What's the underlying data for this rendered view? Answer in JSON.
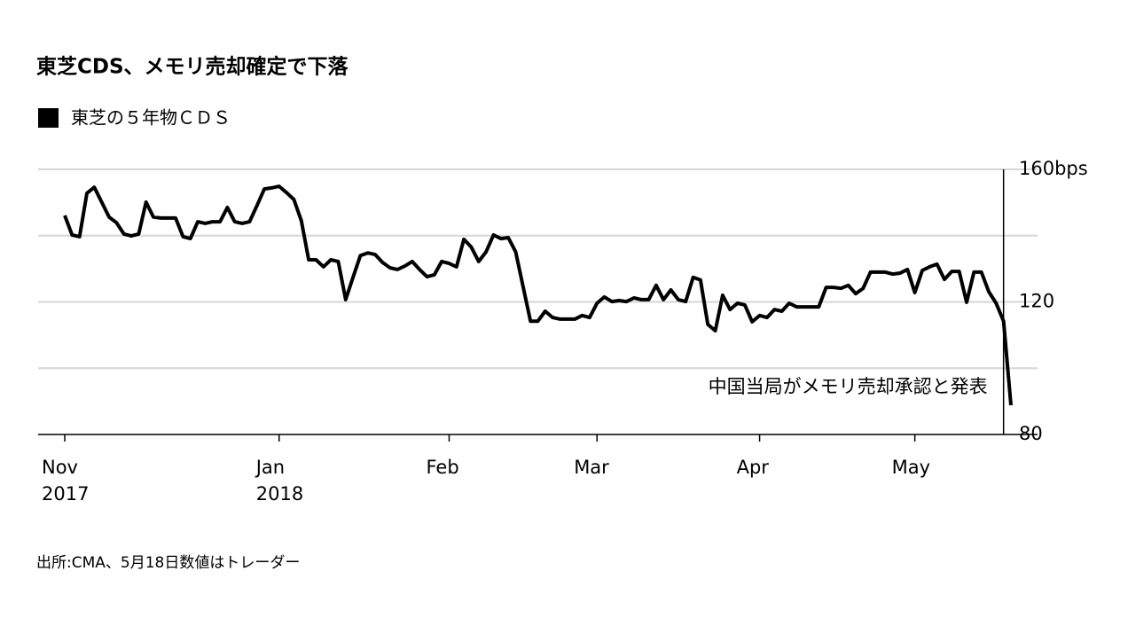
{
  "chart_data": {
    "type": "line",
    "title": "東芝CDS、メモリ売却確定で下落",
    "source": "出所:CMA、5月18日数値はトレーダー",
    "categories": [
      "Nov\n2017",
      null,
      null,
      null,
      null,
      null,
      null,
      null,
      null,
      null,
      null,
      null,
      null,
      null,
      null,
      null,
      null,
      null,
      null,
      null,
      null,
      null,
      null,
      null,
      null,
      null,
      null,
      null,
      null,
      "Jan\n2018",
      null,
      null,
      null,
      null,
      null,
      null,
      null,
      null,
      null,
      null,
      null,
      null,
      null,
      null,
      null,
      null,
      null,
      null,
      null,
      null,
      null,
      null,
      "Feb",
      null,
      null,
      null,
      null,
      null,
      null,
      null,
      null,
      null,
      null,
      null,
      null,
      null,
      null,
      null,
      null,
      null,
      null,
      null,
      "Mar",
      null,
      null,
      null,
      null,
      null,
      null,
      null,
      null,
      null,
      null,
      null,
      null,
      null,
      null,
      null,
      null,
      null,
      null,
      null,
      null,
      null,
      "Apr",
      null,
      null,
      null,
      null,
      null,
      null,
      null,
      null,
      null,
      null,
      null,
      null,
      null,
      null,
      null,
      null,
      null,
      null,
      null,
      null,
      "May",
      null,
      null,
      null,
      null,
      null,
      null,
      null,
      null,
      null,
      null,
      null,
      null,
      null
    ],
    "series": [
      {
        "name": "東芝の５年物ＣＤＳ",
        "color": "#000000",
        "values": [
          146.1,
          140.2,
          139.7,
          152.8,
          154.6,
          150.1,
          145.6,
          143.9,
          140.5,
          139.9,
          140.5,
          150.1,
          145.6,
          145.3,
          145.3,
          145.3,
          139.7,
          139.1,
          144.2,
          143.7,
          144.2,
          144.2,
          148.5,
          144.2,
          143.7,
          144.2,
          149.0,
          154.1,
          154.4,
          154.9,
          153.0,
          150.9,
          144.5,
          132.7,
          132.7,
          130.6,
          132.7,
          132.2,
          120.7,
          127.4,
          134.0,
          134.8,
          134.3,
          131.9,
          130.3,
          129.8,
          130.8,
          132.2,
          129.8,
          127.6,
          128.2,
          132.2,
          131.6,
          130.6,
          138.9,
          136.5,
          132.2,
          135.1,
          140.2,
          139.1,
          139.4,
          135.1,
          124.7,
          114.2,
          114.2,
          117.2,
          115.3,
          114.8,
          114.8,
          114.8,
          115.9,
          115.3,
          119.6,
          121.5,
          120.1,
          120.4,
          120.1,
          121.2,
          120.7,
          120.7,
          125.0,
          120.7,
          123.6,
          120.7,
          120.1,
          127.4,
          126.6,
          113.2,
          111.3,
          122.0,
          117.7,
          119.6,
          119.1,
          114.0,
          115.9,
          115.3,
          117.7,
          117.2,
          119.6,
          118.5,
          118.5,
          118.5,
          118.5,
          124.4,
          124.4,
          124.1,
          125.0,
          122.5,
          124.1,
          129.0,
          129.0,
          129.0,
          128.4,
          128.7,
          129.8,
          122.8,
          129.5,
          130.6,
          131.4,
          126.8,
          129.2,
          129.2,
          119.9,
          129.0,
          129.0,
          123.1,
          119.6,
          114.2,
          88.8
        ]
      }
    ],
    "ylim": [
      80,
      160
    ],
    "yticks": [
      {
        "value": 160,
        "label": "160bps"
      },
      120,
      80
    ],
    "ygrid": [
      80,
      100,
      120,
      140,
      160
    ],
    "grid": true,
    "annotation": {
      "text": "中国当局がメモリ売却承認と発表",
      "index": 127
    }
  }
}
